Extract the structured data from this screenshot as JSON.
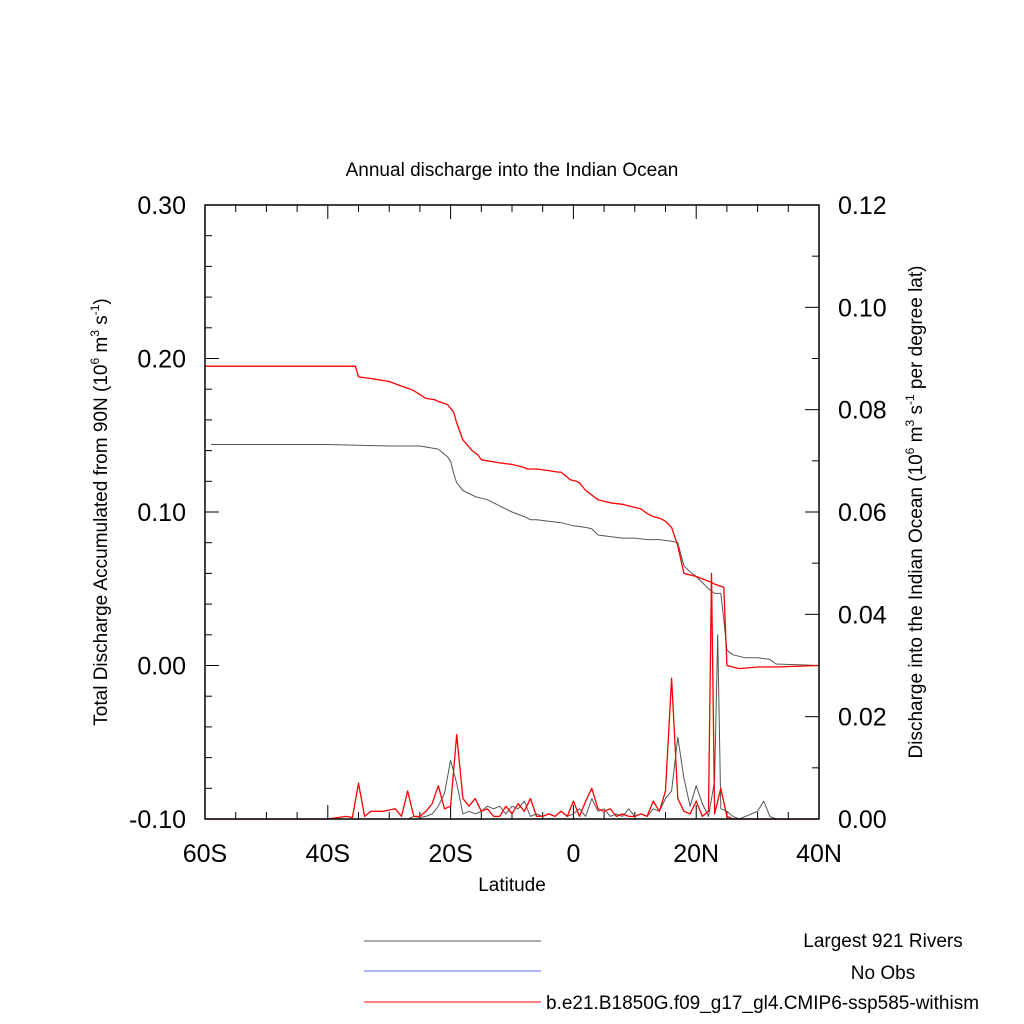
{
  "chart_data": {
    "type": "line",
    "title": "Annual discharge into the Indian Ocean",
    "xlabel": "Latitude",
    "ylabel_left": {
      "main": "Total Discharge Accumulated from 90N (10",
      "sup1": "6",
      "mid": " m",
      "sup2": "3",
      "mid2": " s",
      "sup3": "-1",
      "tail": ")"
    },
    "ylabel_right": {
      "main": "Discharge into the Indian Ocean (10",
      "sup1": "6",
      "mid": " m",
      "sup2": "3",
      "mid2": " s",
      "sup3": "-1",
      "tail": " per degree lat)"
    },
    "x_ticks": [
      {
        "value": -60,
        "label": "60S"
      },
      {
        "value": -40,
        "label": "40S"
      },
      {
        "value": -20,
        "label": "20S"
      },
      {
        "value": 0,
        "label": "0"
      },
      {
        "value": 20,
        "label": "20N"
      },
      {
        "value": 40,
        "label": "40N"
      }
    ],
    "xlim": [
      -60,
      40
    ],
    "ylim_left": [
      -0.1,
      0.3
    ],
    "ylim_right": [
      0,
      0.12
    ],
    "y_ticks_left": [
      "-0.10",
      "0.00",
      "0.10",
      "0.20",
      "0.30"
    ],
    "y_ticks_right": [
      "0.00",
      "0.02",
      "0.04",
      "0.06",
      "0.08",
      "0.10",
      "0.12"
    ],
    "legend": [
      {
        "name": "Largest 921 Rivers",
        "color": "#555555"
      },
      {
        "name": "No Obs",
        "color": "#5b6bff"
      },
      {
        "name": "b.e21.B1850G.f09_g17_gl4.CMIP6-ssp585-withism",
        "color": "#ff0000"
      }
    ],
    "series": [
      {
        "axis": "left",
        "color": "#555555",
        "x": [
          -59,
          -40,
          -30,
          -25,
          -22,
          -20.5,
          -20,
          -19.5,
          -19,
          -18,
          -16,
          -14,
          -12,
          -10,
          -8,
          -7,
          -6,
          -4,
          -2,
          0,
          2,
          3,
          4,
          6,
          8,
          10,
          12,
          14,
          16,
          17,
          18,
          19,
          20,
          22,
          23,
          24,
          24.5,
          25,
          26,
          28,
          30,
          32,
          33,
          40
        ],
        "y": [
          0.144,
          0.144,
          0.143,
          0.143,
          0.141,
          0.136,
          0.133,
          0.125,
          0.119,
          0.114,
          0.11,
          0.108,
          0.104,
          0.1,
          0.097,
          0.095,
          0.095,
          0.094,
          0.093,
          0.091,
          0.09,
          0.089,
          0.085,
          0.084,
          0.083,
          0.083,
          0.082,
          0.082,
          0.081,
          0.08,
          0.065,
          0.061,
          0.058,
          0.05,
          0.047,
          0.047,
          0.03,
          0.01,
          0.007,
          0.005,
          0.005,
          0.004,
          0.001,
          0.0
        ]
      },
      {
        "axis": "left",
        "color": "#ff0000",
        "x": [
          -60,
          -35.5,
          -35,
          -33,
          -30,
          -28,
          -26.5,
          -26,
          -24,
          -22.5,
          -22,
          -20.5,
          -19.5,
          -19,
          -18,
          -16.5,
          -15.5,
          -15,
          -12,
          -10,
          -8,
          -7.5,
          -6,
          -4,
          -2.5,
          -2,
          -0.5,
          0.5,
          1,
          2,
          4,
          6,
          8,
          9,
          10,
          11,
          12,
          13,
          14,
          15,
          16,
          17,
          18,
          20,
          22,
          23,
          24.5,
          25,
          27,
          30,
          33,
          40
        ],
        "y": [
          0.195,
          0.195,
          0.188,
          0.187,
          0.185,
          0.182,
          0.18,
          0.179,
          0.174,
          0.173,
          0.172,
          0.17,
          0.165,
          0.158,
          0.147,
          0.14,
          0.137,
          0.134,
          0.132,
          0.131,
          0.129,
          0.128,
          0.128,
          0.127,
          0.126,
          0.126,
          0.121,
          0.12,
          0.119,
          0.114,
          0.108,
          0.106,
          0.105,
          0.104,
          0.103,
          0.102,
          0.099,
          0.097,
          0.096,
          0.094,
          0.09,
          0.078,
          0.06,
          0.058,
          0.055,
          0.053,
          0.051,
          0.0,
          -0.002,
          -0.001,
          -0.001,
          0.0
        ]
      },
      {
        "axis": "right",
        "color": "#555555",
        "x": [
          -60,
          -45,
          -40,
          -35,
          -33,
          -30,
          -28,
          -27,
          -26,
          -25,
          -24,
          -23,
          -22,
          -21,
          -20,
          -19,
          -18,
          -17,
          -16,
          -15,
          -14,
          -13,
          -12,
          -11,
          -10,
          -9,
          -8,
          -7,
          -6,
          -5,
          -4,
          -3,
          -2,
          -1,
          0,
          1,
          2,
          3,
          4,
          5,
          6,
          7,
          8,
          9,
          10,
          11,
          12,
          13,
          14,
          15,
          16,
          17,
          18,
          19,
          20,
          21,
          22,
          23,
          23.5,
          24,
          25,
          26,
          27,
          28,
          29,
          30,
          31,
          32,
          33,
          40
        ],
        "y": [
          0,
          0,
          0,
          0,
          0,
          0,
          0,
          0,
          0.0005,
          0.0003,
          0.0005,
          0.001,
          0.0025,
          0.005,
          0.0115,
          0.007,
          0.001,
          0.0015,
          0.001,
          0.0015,
          0.0025,
          0.002,
          0.0025,
          0.001,
          0.0025,
          0.002,
          0.0035,
          0.0005,
          0.001,
          0.0005,
          0.001,
          0.0005,
          0.0015,
          0.0005,
          0.001,
          0.002,
          0.0005,
          0.004,
          0.0015,
          0.002,
          0.0005,
          0.001,
          0.0005,
          0.002,
          0.0005,
          0.001,
          0.0005,
          0.002,
          0.0015,
          0.004,
          0.0055,
          0.016,
          0.008,
          0.0025,
          0.0065,
          0.003,
          0.0005,
          0.0075,
          0.036,
          0.002,
          0.0015,
          0.0005,
          0,
          0.0005,
          0.001,
          0.0015,
          0.0035,
          0.0005,
          0,
          0
        ]
      },
      {
        "axis": "right",
        "color": "#ff0000",
        "x": [
          -60,
          -45,
          -40,
          -37,
          -36,
          -35,
          -34,
          -33,
          -31,
          -29,
          -28,
          -27,
          -26,
          -25,
          -24,
          -23,
          -22,
          -21,
          -20,
          -19,
          -18,
          -17,
          -16,
          -15,
          -14,
          -13,
          -12,
          -11,
          -10,
          -9,
          -8,
          -7,
          -6,
          -5,
          -4,
          -3,
          -2,
          -1,
          0,
          1,
          2,
          3,
          4,
          5,
          6,
          7,
          8,
          9,
          10,
          11,
          12,
          13,
          14,
          15,
          16,
          17,
          18,
          19,
          20,
          21,
          22,
          22.5,
          23,
          24,
          25,
          26,
          28,
          30,
          35,
          40
        ],
        "y": [
          0,
          0,
          0,
          0.0005,
          0.0003,
          0.007,
          0.0005,
          0.0015,
          0.0015,
          0.002,
          0.0005,
          0.0055,
          0.0005,
          0.0005,
          0.0015,
          0.003,
          0.0065,
          0.002,
          0.0025,
          0.0165,
          0.004,
          0.0025,
          0.004,
          0.0015,
          0.002,
          0.0005,
          0.0005,
          0.0025,
          0.001,
          0.003,
          0.0015,
          0.004,
          0.0005,
          0.0005,
          0.001,
          0.0005,
          0.0015,
          0.0005,
          0.0035,
          0.0005,
          0.0035,
          0.006,
          0.002,
          0.0015,
          0.002,
          0.0005,
          0.001,
          0.0005,
          0.0005,
          0.001,
          0.0005,
          0.0035,
          0.0015,
          0.0055,
          0.0275,
          0.004,
          0.0015,
          0.001,
          0.0035,
          0.0005,
          0.0015,
          0.048,
          0.001,
          0.006,
          0.0005,
          0,
          0,
          0,
          0,
          0
        ]
      }
    ]
  }
}
